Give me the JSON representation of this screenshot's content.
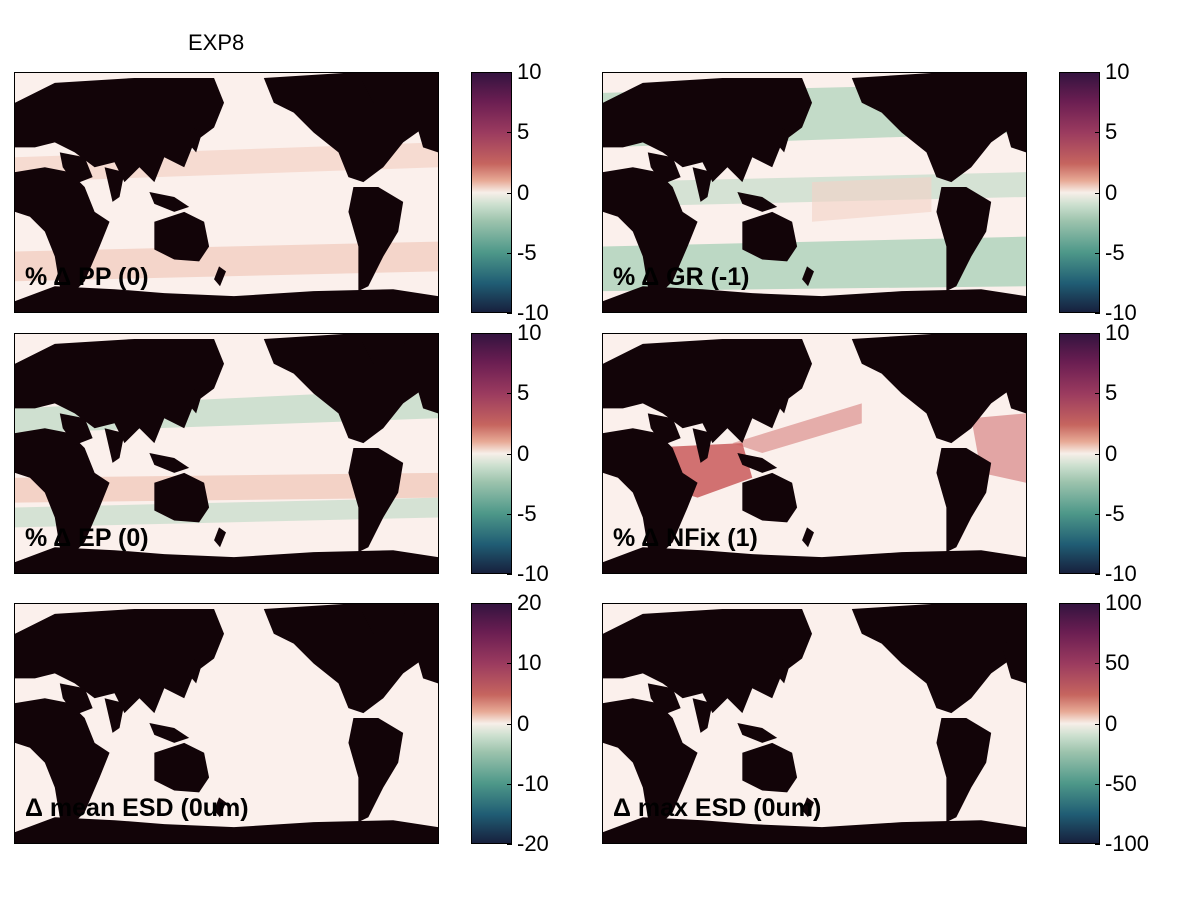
{
  "figure_title": "EXP8",
  "chart_data": [
    {
      "type": "heatmap",
      "label": "% Δ PP (0)",
      "cbar_ticks": [
        "10",
        "5",
        "0",
        "-5",
        "-10"
      ],
      "clim": [
        -10,
        10
      ],
      "pattern": "pp"
    },
    {
      "type": "heatmap",
      "label": "% Δ GR (-1)",
      "cbar_ticks": [
        "10",
        "5",
        "0",
        "-5",
        "-10"
      ],
      "clim": [
        -10,
        10
      ],
      "pattern": "gr"
    },
    {
      "type": "heatmap",
      "label": "% Δ EP (0)",
      "cbar_ticks": [
        "10",
        "5",
        "0",
        "-5",
        "-10"
      ],
      "clim": [
        -10,
        10
      ],
      "pattern": "ep"
    },
    {
      "type": "heatmap",
      "label": "% Δ NFix (1)",
      "cbar_ticks": [
        "10",
        "5",
        "0",
        "-5",
        "-10"
      ],
      "clim": [
        -10,
        10
      ],
      "pattern": "nfix"
    },
    {
      "type": "heatmap",
      "label": "Δ mean ESD (0um)",
      "cbar_ticks": [
        "20",
        "10",
        "0",
        "-10",
        "-20"
      ],
      "clim": [
        -20,
        20
      ],
      "pattern": "flat"
    },
    {
      "type": "heatmap",
      "label": "Δ max ESD (0um)",
      "cbar_ticks": [
        "100",
        "50",
        "0",
        "-50",
        "-100"
      ],
      "clim": [
        -100,
        100
      ],
      "pattern": "flat"
    }
  ],
  "colors": {
    "land": "#120408",
    "neutral": "#fbf0ec",
    "pink": "#f3d2c6",
    "green": "#bcd8c4",
    "red": "#c95a5c"
  },
  "colormap_name": "curl-diverging"
}
